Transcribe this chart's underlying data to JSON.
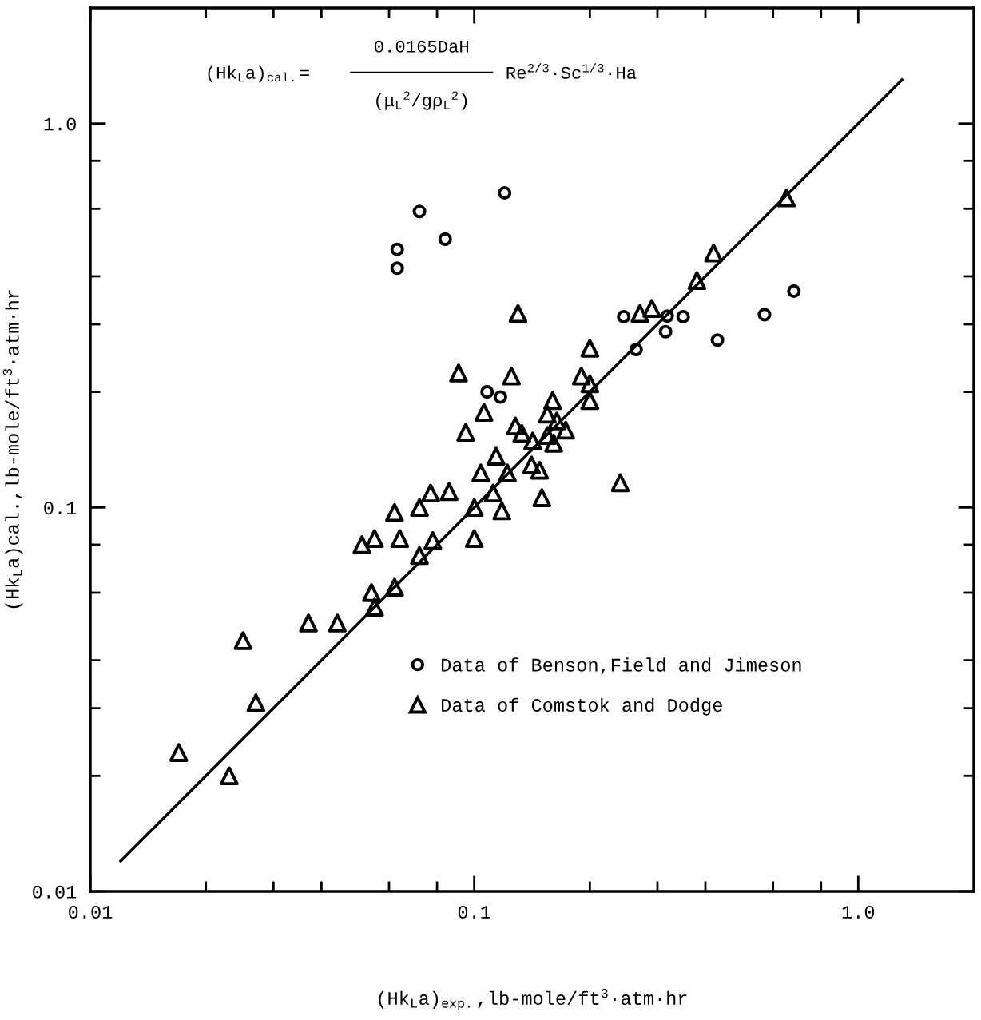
{
  "chart_data": {
    "type": "scatter",
    "log": "xy",
    "xlabel": "(Hk$_{L}$a)$_{exp.}$,lb-mole/ft$^{3}$·atm·hr",
    "ylabel": "(Hk$_{L}$a)cal.,lb-mole/ft$^{3}$·atm·hr",
    "annotations": [
      "(Hk$_{L}$a)$_{cal.}$=",
      "0.0165DaH",
      "(μ$_{L}$$^{2}$/gρ$_{L}$$^{2}$)",
      "Re$^{2/3}$·Sc$^{1/3}$·Ha"
    ],
    "xlim": [
      0.01,
      2.0
    ],
    "ylim": [
      0.01,
      2.0
    ],
    "xticks": [
      {
        "value": 0.01,
        "label": "0.01"
      },
      {
        "value": 0.02,
        "label": null
      },
      {
        "value": 0.03,
        "label": null
      },
      {
        "value": 0.04,
        "label": null
      },
      {
        "value": 0.06,
        "label": null
      },
      {
        "value": 0.08,
        "label": null
      },
      {
        "value": 0.1,
        "label": "0.1"
      },
      {
        "value": 0.2,
        "label": null
      },
      {
        "value": 0.3,
        "label": null
      },
      {
        "value": 0.4,
        "label": null
      },
      {
        "value": 0.6,
        "label": null
      },
      {
        "value": 0.8,
        "label": null
      },
      {
        "value": 1.0,
        "label": "1.0"
      }
    ],
    "yticks": [
      {
        "value": 0.01,
        "label": "0.01"
      },
      {
        "value": 0.02,
        "label": null
      },
      {
        "value": 0.03,
        "label": null
      },
      {
        "value": 0.04,
        "label": null
      },
      {
        "value": 0.06,
        "label": null
      },
      {
        "value": 0.08,
        "label": null
      },
      {
        "value": 0.1,
        "label": "0.1"
      },
      {
        "value": 0.2,
        "label": null
      },
      {
        "value": 0.3,
        "label": null
      },
      {
        "value": 0.4,
        "label": null
      },
      {
        "value": 0.6,
        "label": null
      },
      {
        "value": 0.8,
        "label": null
      },
      {
        "value": 1.0,
        "label": "1.0"
      }
    ],
    "grid": false,
    "legend": "right",
    "series": [
      {
        "name": "Data of Benson,Field and Jimeson",
        "color": "#000000",
        "marker": "circle",
        "x": [
          0.072,
          0.084,
          0.063,
          0.063,
          0.12,
          0.108,
          0.117,
          0.245,
          0.318,
          0.35,
          0.315,
          0.264,
          0.43,
          0.57,
          0.68
        ],
        "values": [
          0.59,
          0.5,
          0.47,
          0.42,
          0.66,
          0.2,
          0.194,
          0.314,
          0.315,
          0.314,
          0.287,
          0.258,
          0.273,
          0.318,
          0.366
        ]
      },
      {
        "name": "Data of Comstok and Dodge",
        "color": "#000000",
        "marker": "triangle",
        "x": [
          0.091,
          0.106,
          0.095,
          0.104,
          0.077,
          0.086,
          0.072,
          0.062,
          0.051,
          0.055,
          0.064,
          0.072,
          0.078,
          0.1,
          0.054,
          0.055,
          0.062,
          0.037,
          0.044,
          0.025,
          0.027,
          0.017,
          0.023,
          0.65,
          0.42,
          0.38,
          0.29,
          0.27,
          0.13,
          0.2,
          0.19,
          0.2,
          0.2,
          0.125,
          0.16,
          0.155,
          0.164,
          0.173,
          0.128,
          0.133,
          0.142,
          0.155,
          0.161,
          0.114,
          0.141,
          0.122,
          0.148,
          0.15,
          0.24,
          0.1,
          0.112,
          0.118
        ],
        "values": [
          0.224,
          0.177,
          0.157,
          0.123,
          0.109,
          0.11,
          0.1,
          0.097,
          0.08,
          0.083,
          0.083,
          0.075,
          0.082,
          0.083,
          0.06,
          0.055,
          0.062,
          0.05,
          0.05,
          0.045,
          0.031,
          0.023,
          0.02,
          0.64,
          0.46,
          0.39,
          0.33,
          0.32,
          0.32,
          0.26,
          0.22,
          0.21,
          0.19,
          0.22,
          0.19,
          0.175,
          0.168,
          0.159,
          0.163,
          0.156,
          0.149,
          0.154,
          0.147,
          0.136,
          0.129,
          0.123,
          0.125,
          0.106,
          0.116,
          0.1,
          0.109,
          0.098
        ]
      },
      {
        "type": "line",
        "color": "#000000",
        "line_style": "solid",
        "marker": "none",
        "x": [
          0.012,
          1.3
        ],
        "values": [
          0.012,
          1.3
        ]
      }
    ]
  }
}
